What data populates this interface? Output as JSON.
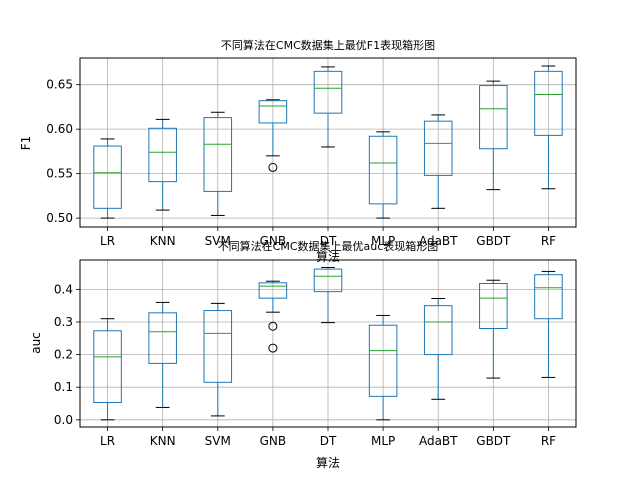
{
  "chart_data": [
    {
      "type": "boxplot",
      "title": "不同算法在CMC数据集上最优F1表现箱形图",
      "xlabel": "算法",
      "ylabel": "F1",
      "categories": [
        "LR",
        "KNN",
        "SVM",
        "GNB",
        "DT",
        "MLP",
        "AdaBT",
        "GBDT",
        "RF"
      ],
      "ylim": [
        0.49,
        0.68
      ],
      "yticks": [
        0.5,
        0.55,
        0.6,
        0.65
      ],
      "ytick_labels": [
        "0.50",
        "0.55",
        "0.60",
        "0.65"
      ],
      "grid": true,
      "boxes": [
        {
          "min": 0.5,
          "q1": 0.511,
          "median": 0.551,
          "q3": 0.581,
          "max": 0.589,
          "outliers": []
        },
        {
          "min": 0.509,
          "q1": 0.541,
          "median": 0.574,
          "q3": 0.601,
          "max": 0.611,
          "outliers": []
        },
        {
          "min": 0.503,
          "q1": 0.53,
          "median": 0.583,
          "q3": 0.613,
          "max": 0.619,
          "outliers": []
        },
        {
          "min": 0.57,
          "q1": 0.607,
          "median": 0.626,
          "q3": 0.632,
          "max": 0.633,
          "outliers": [
            0.557
          ]
        },
        {
          "min": 0.58,
          "q1": 0.618,
          "median": 0.646,
          "q3": 0.665,
          "max": 0.67,
          "outliers": []
        },
        {
          "min": 0.5,
          "q1": 0.516,
          "median": 0.562,
          "q3": 0.592,
          "max": 0.597,
          "outliers": []
        },
        {
          "min": 0.511,
          "q1": 0.548,
          "median": 0.584,
          "q3": 0.609,
          "max": 0.616,
          "outliers": []
        },
        {
          "min": 0.532,
          "q1": 0.578,
          "median": 0.623,
          "q3": 0.649,
          "max": 0.654,
          "outliers": []
        },
        {
          "min": 0.533,
          "q1": 0.593,
          "median": 0.639,
          "q3": 0.665,
          "max": 0.671,
          "outliers": []
        }
      ]
    },
    {
      "type": "boxplot",
      "title": "不同算法在CMC数据集上最优auc表现箱形图",
      "xlabel": "算法",
      "ylabel": "auc",
      "categories": [
        "LR",
        "KNN",
        "SVM",
        "GNB",
        "DT",
        "MLP",
        "AdaBT",
        "GBDT",
        "RF"
      ],
      "ylim": [
        -0.022,
        0.49
      ],
      "yticks": [
        0.0,
        0.1,
        0.2,
        0.3,
        0.4
      ],
      "ytick_labels": [
        "0.0",
        "0.1",
        "0.2",
        "0.3",
        "0.4"
      ],
      "grid": true,
      "boxes": [
        {
          "min": 0.0,
          "q1": 0.053,
          "median": 0.193,
          "q3": 0.273,
          "max": 0.31,
          "outliers": []
        },
        {
          "min": 0.038,
          "q1": 0.173,
          "median": 0.27,
          "q3": 0.328,
          "max": 0.36,
          "outliers": []
        },
        {
          "min": 0.012,
          "q1": 0.115,
          "median": 0.265,
          "q3": 0.335,
          "max": 0.357,
          "outliers": []
        },
        {
          "min": 0.33,
          "q1": 0.373,
          "median": 0.41,
          "q3": 0.42,
          "max": 0.425,
          "outliers": [
            0.287,
            0.22
          ]
        },
        {
          "min": 0.298,
          "q1": 0.393,
          "median": 0.44,
          "q3": 0.462,
          "max": 0.467,
          "outliers": []
        },
        {
          "min": 0.0,
          "q1": 0.072,
          "median": 0.212,
          "q3": 0.29,
          "max": 0.32,
          "outliers": []
        },
        {
          "min": 0.063,
          "q1": 0.2,
          "median": 0.3,
          "q3": 0.35,
          "max": 0.372,
          "outliers": []
        },
        {
          "min": 0.128,
          "q1": 0.28,
          "median": 0.373,
          "q3": 0.418,
          "max": 0.428,
          "outliers": []
        },
        {
          "min": 0.13,
          "q1": 0.31,
          "median": 0.405,
          "q3": 0.445,
          "max": 0.455,
          "outliers": []
        }
      ]
    }
  ]
}
